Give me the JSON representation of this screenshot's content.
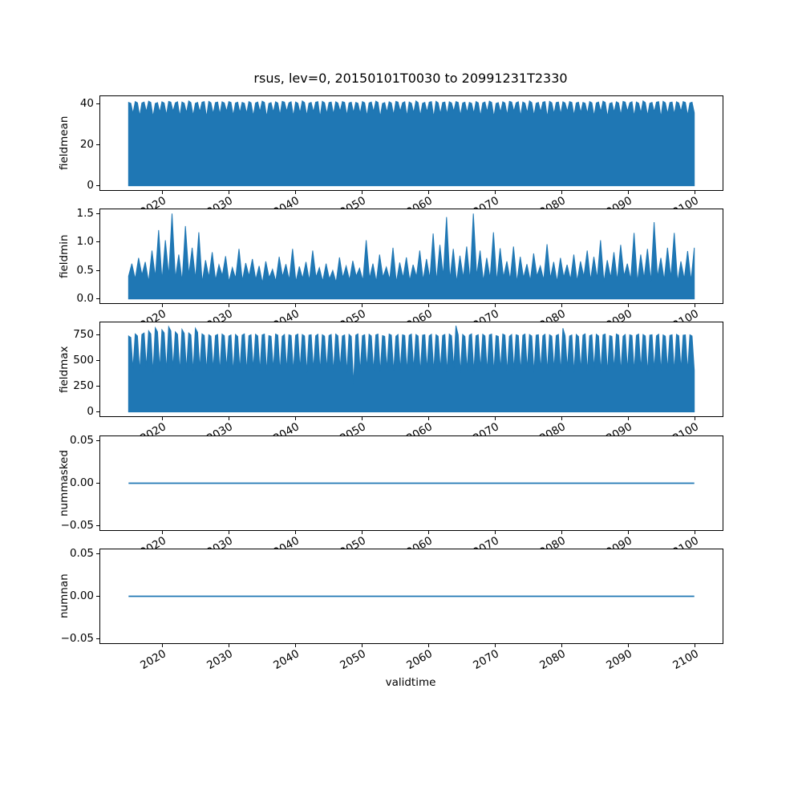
{
  "title": "rsus, lev=0, 20150101T0030 to 20991231T2330",
  "xlabel": "validtime",
  "accent_color": "#1f77b4",
  "axes_edge_color": "#000000",
  "x_ticks": [
    {
      "value": 2020,
      "label": "2020"
    },
    {
      "value": 2030,
      "label": "2030"
    },
    {
      "value": 2040,
      "label": "2040"
    },
    {
      "value": 2050,
      "label": "2050"
    },
    {
      "value": 2060,
      "label": "2060"
    },
    {
      "value": 2070,
      "label": "2070"
    },
    {
      "value": 2080,
      "label": "2080"
    },
    {
      "value": 2090,
      "label": "2090"
    },
    {
      "value": 2100,
      "label": "2100"
    }
  ],
  "chart_data": [
    {
      "type": "area",
      "name": "fieldmean",
      "ylabel": "fieldmean",
      "xlim": [
        2010.75,
        2104.25
      ],
      "x_start": 2015,
      "x_end": 2100,
      "ylim": [
        -2.1,
        43.6
      ],
      "yticks": [
        {
          "value": 0,
          "label": "0"
        },
        {
          "value": 20,
          "label": "20"
        },
        {
          "value": 40,
          "label": "40"
        }
      ],
      "values": [
        40.6,
        40.2,
        35.2,
        41.0,
        40.4,
        34.0,
        40.3,
        40.8,
        36.1,
        41.2,
        40.6,
        33.6,
        40.1,
        40.5,
        35.8,
        40.9,
        40.3,
        34.5,
        41.1,
        40.7,
        36.3,
        40.4,
        40.9,
        33.9,
        40.8,
        40.2,
        35.5,
        41.3,
        40.5,
        34.2,
        40.2,
        40.6,
        36.0,
        40.7,
        41.0,
        33.5,
        41.1,
        40.4,
        35.1,
        40.5,
        40.8,
        34.8,
        40.9,
        40.3,
        36.2,
        41.0,
        40.6,
        34.3,
        40.3,
        40.7,
        35.6,
        40.6,
        40.2,
        35.2,
        41.0,
        40.4,
        34.0,
        40.3,
        40.8,
        36.1,
        41.2,
        40.6,
        33.6,
        40.1,
        40.5,
        35.8,
        40.9,
        40.3,
        34.5,
        41.1,
        40.7,
        36.3,
        40.4,
        40.9,
        33.9,
        40.8,
        40.2,
        35.5,
        41.3,
        40.5,
        34.2,
        40.2,
        40.6,
        36.0,
        40.7,
        41.0,
        33.5,
        41.1,
        40.4,
        35.1,
        40.5,
        40.8,
        34.8,
        40.9,
        40.3,
        36.2,
        41.0,
        40.6,
        34.3,
        40.3,
        40.7,
        35.6,
        40.6,
        40.2,
        35.2,
        41.0,
        40.4,
        34.0,
        40.3,
        40.8,
        36.1,
        41.2,
        40.6,
        33.6,
        40.1,
        40.5,
        35.8,
        40.9,
        40.3,
        34.5,
        41.1,
        40.7,
        36.3,
        40.4,
        40.9,
        33.9,
        40.8,
        40.2,
        35.5,
        41.3,
        40.5,
        34.2,
        40.2,
        40.6,
        36.0,
        40.7,
        41.0,
        33.5,
        41.1,
        40.4,
        35.1,
        40.5,
        40.8,
        34.8,
        40.9,
        40.3,
        36.2,
        41.0,
        40.6,
        34.3,
        40.3,
        40.7,
        35.6,
        40.6,
        40.2,
        35.2,
        41.0,
        40.4,
        34.0,
        40.3,
        40.8,
        36.1,
        41.2,
        40.6,
        33.6,
        40.1,
        40.5,
        35.8,
        40.9,
        40.3,
        34.5,
        41.1,
        40.7,
        36.3,
        40.4,
        40.9,
        33.9,
        40.8,
        40.2,
        35.5,
        41.3,
        40.5,
        34.2,
        40.2,
        40.6,
        36.0,
        40.7,
        41.0,
        33.5,
        41.1,
        40.4,
        35.1,
        40.5,
        40.8,
        34.8,
        40.9,
        40.3,
        36.2,
        41.0,
        40.6,
        34.3,
        40.3,
        40.7,
        35.6,
        40.6,
        40.2,
        35.2,
        41.0,
        40.4,
        34.0,
        40.3,
        40.8,
        36.1,
        41.2,
        40.6,
        33.6,
        40.1,
        40.5,
        35.8,
        40.9,
        40.3,
        34.5,
        41.1,
        40.7,
        36.3,
        40.4,
        40.9,
        33.9,
        40.8,
        40.2,
        35.5,
        41.3,
        40.5,
        34.2,
        40.2,
        40.6,
        36.0,
        40.7,
        41.0,
        33.5,
        41.1,
        40.4,
        35.1,
        40.5,
        40.8,
        34.8,
        40.9,
        40.3,
        36.2,
        41.0,
        40.6,
        34.3,
        40.3,
        40.7,
        35.6
      ]
    },
    {
      "type": "area",
      "name": "fieldmin",
      "ylabel": "fieldmin",
      "xlim": [
        2010.75,
        2104.25
      ],
      "x_start": 2015,
      "x_end": 2100,
      "ylim": [
        -0.075,
        1.575
      ],
      "yticks": [
        {
          "value": 0.0,
          "label": "0.0"
        },
        {
          "value": 0.5,
          "label": "0.5"
        },
        {
          "value": 1.0,
          "label": "1.0"
        },
        {
          "value": 1.5,
          "label": "1.5"
        }
      ],
      "values": [
        0.4,
        0.62,
        0.35,
        0.72,
        0.42,
        0.65,
        0.3,
        0.85,
        0.38,
        1.21,
        0.33,
        1.03,
        0.4,
        1.5,
        0.36,
        0.78,
        0.31,
        1.28,
        0.42,
        0.9,
        0.35,
        1.17,
        0.29,
        0.68,
        0.38,
        0.82,
        0.33,
        0.6,
        0.41,
        0.75,
        0.3,
        0.55,
        0.36,
        0.88,
        0.32,
        0.63,
        0.4,
        0.7,
        0.34,
        0.58,
        0.28,
        0.66,
        0.37,
        0.52,
        0.31,
        0.74,
        0.39,
        0.61,
        0.33,
        0.88,
        0.3,
        0.57,
        0.36,
        0.65,
        0.32,
        0.85,
        0.38,
        0.55,
        0.31,
        0.62,
        0.35,
        0.5,
        0.29,
        0.73,
        0.37,
        0.58,
        0.33,
        0.67,
        0.4,
        0.54,
        0.32,
        1.03,
        0.36,
        0.62,
        0.3,
        0.78,
        0.38,
        0.56,
        0.34,
        0.9,
        0.29,
        0.64,
        0.37,
        0.73,
        0.32,
        0.6,
        0.39,
        0.85,
        0.33,
        0.7,
        0.36,
        1.15,
        0.31,
        0.95,
        0.4,
        1.44,
        0.34,
        0.88,
        0.29,
        0.76,
        0.37,
        0.92,
        0.33,
        1.5,
        0.4,
        0.85,
        0.31,
        0.72,
        0.36,
        1.17,
        0.3,
        0.89,
        0.38,
        0.66,
        0.34,
        0.92,
        0.29,
        0.74,
        0.37,
        0.61,
        0.32,
        0.8,
        0.4,
        0.58,
        0.33,
        0.96,
        0.36,
        0.65,
        0.3,
        0.72,
        0.38,
        0.6,
        0.34,
        0.78,
        0.31,
        0.66,
        0.39,
        0.85,
        0.33,
        0.74,
        0.36,
        1.03,
        0.3,
        0.68,
        0.37,
        0.82,
        0.32,
        0.95,
        0.4,
        0.62,
        0.34,
        1.16,
        0.29,
        0.78,
        0.36,
        0.88,
        0.31,
        1.35,
        0.38,
        0.72,
        0.33,
        0.9,
        0.37,
        1.16,
        0.3,
        0.66,
        0.35,
        0.84,
        0.32,
        0.9
      ]
    },
    {
      "type": "area",
      "name": "fieldmax",
      "ylabel": "fieldmax",
      "xlim": [
        2010.75,
        2104.25
      ],
      "x_start": 2015,
      "x_end": 2100,
      "ylim": [
        -42,
        872
      ],
      "yticks": [
        {
          "value": 0,
          "label": "0"
        },
        {
          "value": 250,
          "label": "250"
        },
        {
          "value": 500,
          "label": "500"
        },
        {
          "value": 750,
          "label": "750"
        }
      ],
      "values": [
        740,
        725,
        420,
        760,
        740,
        395,
        755,
        770,
        430,
        790,
        760,
        385,
        820,
        780,
        415,
        800,
        770,
        400,
        830,
        790,
        425,
        780,
        755,
        390,
        805,
        765,
        410,
        770,
        750,
        395,
        815,
        775,
        420,
        760,
        745,
        400,
        752,
        738,
        415,
        745,
        755,
        390,
        758,
        742,
        425,
        740,
        750,
        385,
        755,
        735,
        410,
        748,
        760,
        395,
        742,
        752,
        420,
        756,
        740,
        400,
        750,
        758,
        388,
        744,
        736,
        415,
        759,
        748,
        392,
        738,
        754,
        408,
        752,
        744,
        396,
        746,
        758,
        418,
        754,
        740,
        386,
        748,
        752,
        412,
        742,
        756,
        398,
        752,
        738,
        415,
        745,
        755,
        390,
        758,
        742,
        425,
        740,
        750,
        385,
        755,
        735,
        270,
        748,
        760,
        395,
        742,
        752,
        420,
        756,
        740,
        400,
        750,
        758,
        388,
        744,
        736,
        415,
        759,
        748,
        392,
        738,
        754,
        408,
        752,
        744,
        396,
        746,
        758,
        418,
        754,
        740,
        386,
        748,
        752,
        412,
        742,
        756,
        398,
        752,
        738,
        415,
        745,
        755,
        390,
        758,
        742,
        425,
        840,
        750,
        385,
        755,
        735,
        410,
        748,
        760,
        395,
        742,
        752,
        420,
        756,
        740,
        400,
        750,
        758,
        388,
        744,
        736,
        415,
        759,
        748,
        392,
        738,
        754,
        408,
        752,
        744,
        396,
        746,
        758,
        418,
        754,
        740,
        386,
        748,
        752,
        412,
        742,
        756,
        398,
        752,
        738,
        415,
        745,
        755,
        390,
        815,
        742,
        425,
        740,
        750,
        385,
        755,
        735,
        410,
        748,
        760,
        395,
        742,
        752,
        420,
        756,
        740,
        400,
        750,
        758,
        388,
        744,
        736,
        415,
        759,
        748,
        392,
        738,
        754,
        408,
        752,
        744,
        396,
        746,
        758,
        418,
        754,
        740,
        386,
        748,
        752,
        412,
        742,
        756,
        398,
        750,
        738,
        410,
        745,
        752,
        395,
        755,
        742,
        415,
        748,
        750,
        400,
        752,
        740,
        405
      ]
    },
    {
      "type": "line",
      "name": "nummasked",
      "ylabel": "nummasked",
      "xlim": [
        2010.75,
        2104.25
      ],
      "x_start": 2015,
      "x_end": 2100,
      "ylim": [
        -0.055,
        0.055
      ],
      "yticks": [
        {
          "value": 0.05,
          "label": "0.05"
        },
        {
          "value": 0,
          "label": "0.00"
        },
        {
          "value": -0.05,
          "label": "−0.05"
        }
      ],
      "values": [
        0,
        0
      ]
    },
    {
      "type": "line",
      "name": "numnan",
      "ylabel": "numnan",
      "xlim": [
        2010.75,
        2104.25
      ],
      "x_start": 2015,
      "x_end": 2100,
      "ylim": [
        -0.055,
        0.055
      ],
      "yticks": [
        {
          "value": 0.05,
          "label": "0.05"
        },
        {
          "value": 0,
          "label": "0.00"
        },
        {
          "value": -0.05,
          "label": "−0.05"
        }
      ],
      "values": [
        0,
        0
      ]
    }
  ]
}
